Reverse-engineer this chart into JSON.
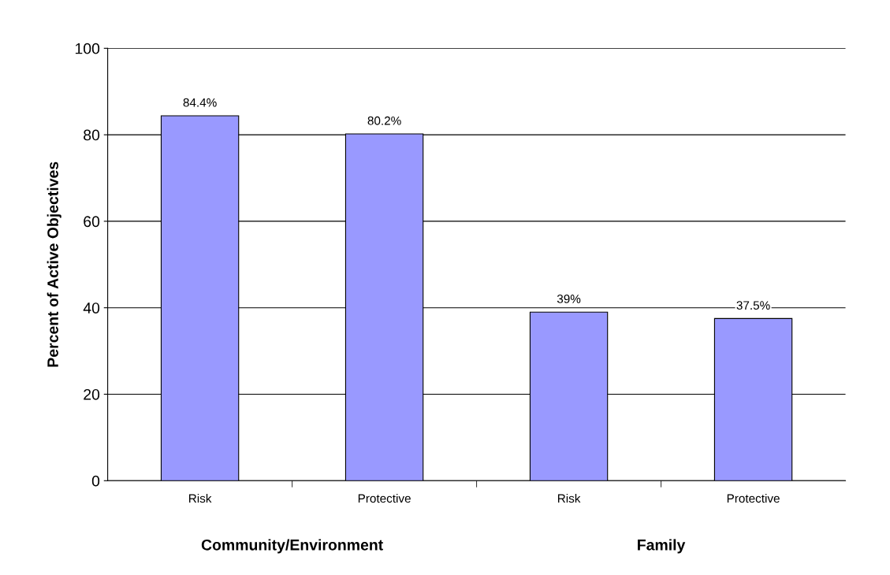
{
  "chart_data": {
    "type": "bar",
    "ylabel": "Percent of Active Objectives",
    "categories": [
      "Risk",
      "Protective",
      "Risk",
      "Protective"
    ],
    "values": [
      84.4,
      80.2,
      39,
      37.5
    ],
    "value_labels": [
      "84.4%",
      "80.2%",
      "39%",
      "37.5%"
    ],
    "color": "#9999ff",
    "ylim": [
      0,
      100
    ],
    "yticks": [
      0,
      20,
      40,
      60,
      80,
      100
    ],
    "grid": "y",
    "legend": false,
    "annotations": [
      "Community/Environment",
      "Family"
    ]
  }
}
